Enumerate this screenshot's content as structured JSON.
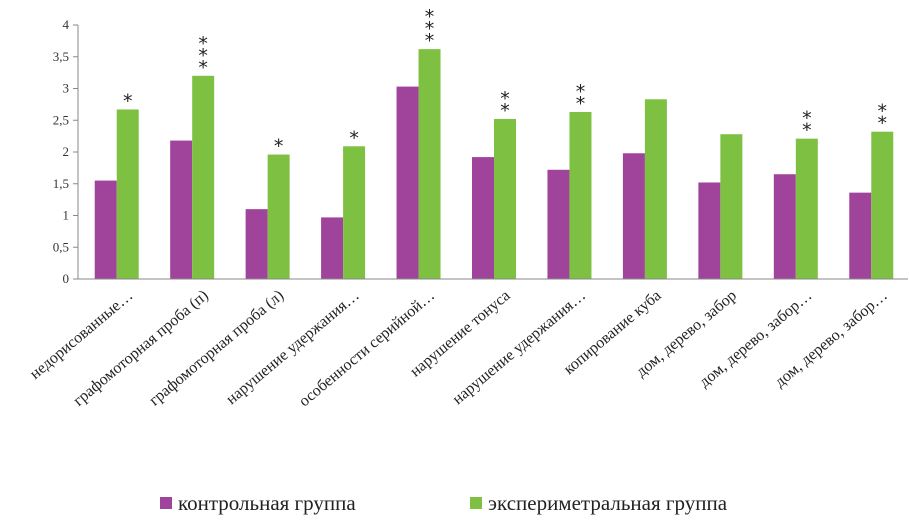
{
  "chart_data": {
    "type": "bar",
    "categories": [
      "недорисованные…",
      "графомоторная  проба (п)",
      "графомоторная  проба (л)",
      "нарушение удержания…",
      "особенности серийной…",
      "нарушение тонуса",
      "нарушение удержания…",
      "копирование куба",
      "дом, дерево, забор",
      "дом, дерево, забор…",
      "дом, дерево, забор…"
    ],
    "series": [
      {
        "name": "контрольная группа",
        "color": "#a0449b",
        "values": [
          1.55,
          2.18,
          1.1,
          0.97,
          3.03,
          1.92,
          1.72,
          1.98,
          1.52,
          1.65,
          1.36
        ],
        "stars": [
          "",
          "",
          "",
          "",
          "",
          "",
          "",
          "",
          "",
          "",
          ""
        ]
      },
      {
        "name": "эксперимет­ральная группа",
        "color": "#7ec142",
        "values": [
          2.67,
          3.2,
          1.96,
          2.09,
          3.62,
          2.52,
          2.63,
          2.83,
          2.28,
          2.21,
          2.32
        ],
        "stars": [
          "*",
          "***",
          "*",
          "*",
          "***",
          "**",
          "**",
          "",
          "",
          "**",
          "**"
        ]
      }
    ],
    "ylim": [
      0,
      4
    ],
    "yticks": [
      "0",
      "0,5",
      "1",
      "1,5",
      "2",
      "2,5",
      "3",
      "3,5",
      "4"
    ],
    "ytick_values": [
      0,
      0.5,
      1,
      1.5,
      2,
      2.5,
      3,
      3.5,
      4
    ],
    "grid": false,
    "legend_position": "bottom",
    "xlabel": "",
    "ylabel": ""
  }
}
